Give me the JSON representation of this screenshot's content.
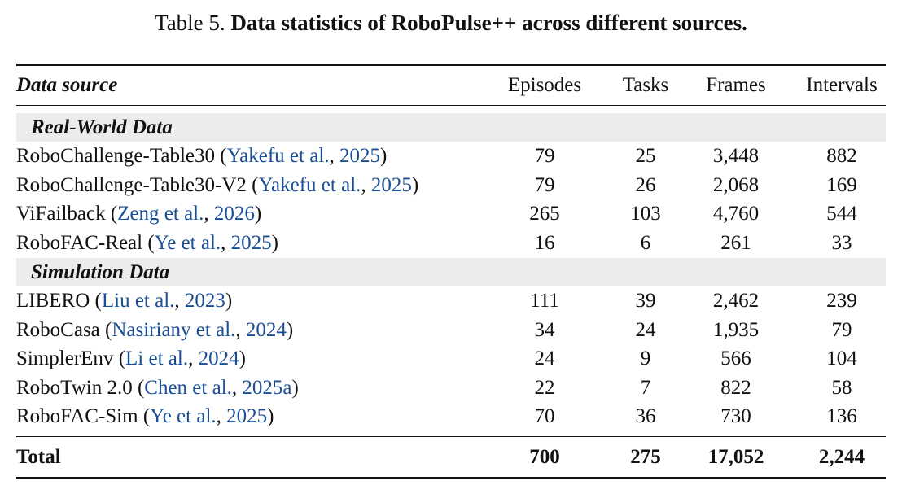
{
  "caption": {
    "label": "Table 5.",
    "title": "Data statistics of RoboPulse++ across different sources."
  },
  "header": {
    "source": "Data source",
    "episodes": "Episodes",
    "tasks": "Tasks",
    "frames": "Frames",
    "intervals": "Intervals"
  },
  "groups": [
    {
      "name": "Real-World Data",
      "rows": [
        {
          "name": "RoboChallenge-Table30",
          "authors": "Yakefu et al.",
          "year": "2025",
          "episodes": "79",
          "tasks": "25",
          "frames": "3,448",
          "intervals": "882"
        },
        {
          "name": "RoboChallenge-Table30-V2",
          "authors": "Yakefu et al.",
          "year": "2025",
          "episodes": "79",
          "tasks": "26",
          "frames": "2,068",
          "intervals": "169"
        },
        {
          "name": "ViFailback",
          "authors": "Zeng et al.",
          "year": "2026",
          "episodes": "265",
          "tasks": "103",
          "frames": "4,760",
          "intervals": "544"
        },
        {
          "name": "RoboFAC-Real",
          "authors": "Ye et al.",
          "year": "2025",
          "episodes": "16",
          "tasks": "6",
          "frames": "261",
          "intervals": "33"
        }
      ]
    },
    {
      "name": "Simulation Data",
      "rows": [
        {
          "name": "LIBERO",
          "authors": "Liu et al.",
          "year": "2023",
          "episodes": "111",
          "tasks": "39",
          "frames": "2,462",
          "intervals": "239"
        },
        {
          "name": "RoboCasa",
          "authors": "Nasiriany et al.",
          "year": "2024",
          "episodes": "34",
          "tasks": "24",
          "frames": "1,935",
          "intervals": "79"
        },
        {
          "name": "SimplerEnv",
          "authors": "Li et al.",
          "year": "2024",
          "episodes": "24",
          "tasks": "9",
          "frames": "566",
          "intervals": "104"
        },
        {
          "name": "RoboTwin 2.0",
          "authors": "Chen et al.",
          "year": "2025a",
          "episodes": "22",
          "tasks": "7",
          "frames": "822",
          "intervals": "58"
        },
        {
          "name": "RoboFAC-Sim",
          "authors": "Ye et al.",
          "year": "2025",
          "episodes": "70",
          "tasks": "36",
          "frames": "730",
          "intervals": "136"
        }
      ]
    }
  ],
  "total": {
    "label": "Total",
    "episodes": "700",
    "tasks": "275",
    "frames": "17,052",
    "intervals": "2,244"
  },
  "colors": {
    "citation": "#1a4f96",
    "group_band": "#ececec"
  }
}
